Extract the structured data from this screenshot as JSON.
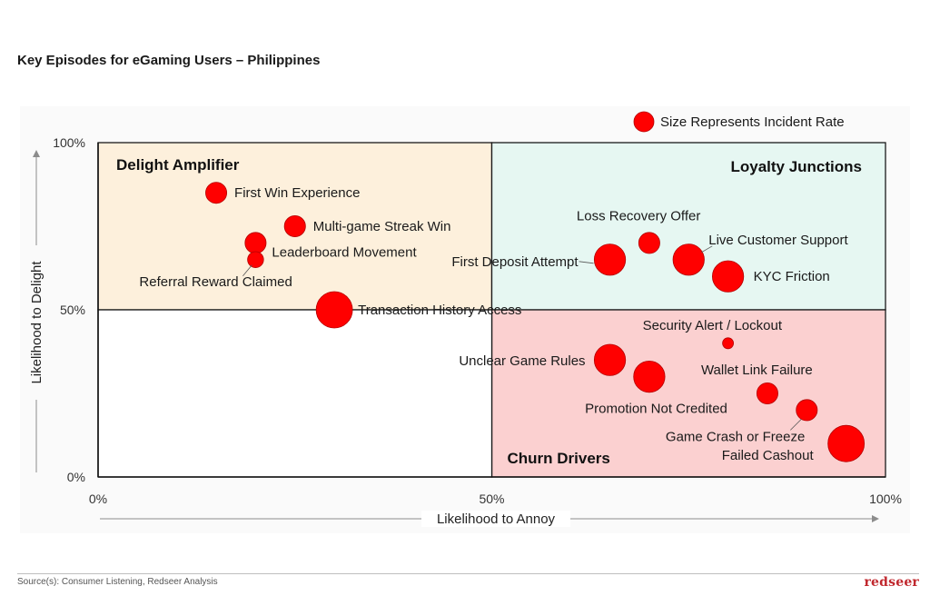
{
  "page": {
    "title": "Key Episodes for eGaming Users – Philippines",
    "source": "Source(s): Consumer Listening, Redseer Analysis",
    "brand": "redseer"
  },
  "chart_data": {
    "type": "scatter",
    "variant": "bubble",
    "title": "",
    "xlabel": "Likelihood to Annoy",
    "ylabel": "Likelihood to Delight",
    "xlim": [
      0,
      100
    ],
    "ylim": [
      0,
      100
    ],
    "xticks": [
      "0%",
      "50%",
      "100%"
    ],
    "yticks": [
      "0%",
      "50%",
      "100%"
    ],
    "grid": false,
    "legend": {
      "label": "Size Represents Incident Rate",
      "position": "top-right"
    },
    "bubble_color": "#ff0000",
    "quadrants": [
      {
        "label": "Delight Amplifier",
        "x_range": [
          0,
          50
        ],
        "y_range": [
          50,
          100
        ],
        "color": "#fdf0dc",
        "label_position": "top-left"
      },
      {
        "label": "Loyalty Junctions",
        "x_range": [
          50,
          100
        ],
        "y_range": [
          50,
          100
        ],
        "color": "#e6f7f2",
        "label_position": "top-right"
      },
      {
        "label": "Churn Drivers",
        "x_range": [
          50,
          100
        ],
        "y_range": [
          0,
          50
        ],
        "color": "#fbd0d0",
        "label_position": "bottom-left"
      },
      {
        "label": "",
        "x_range": [
          0,
          50
        ],
        "y_range": [
          0,
          50
        ],
        "color": "#ffffff",
        "label_position": ""
      }
    ],
    "points": [
      {
        "label": "First Win Experience",
        "x": 15,
        "y": 85,
        "size": 3
      },
      {
        "label": "Multi-game Streak Win",
        "x": 25,
        "y": 75,
        "size": 3
      },
      {
        "label": "Leaderboard Movement",
        "x": 20,
        "y": 70,
        "size": 3
      },
      {
        "label": "Referral Reward Claimed",
        "x": 20,
        "y": 65,
        "size": 2
      },
      {
        "label": "Transaction History Access",
        "x": 30,
        "y": 50,
        "size": 6
      },
      {
        "label": "Loss Recovery Offer",
        "x": 70,
        "y": 70,
        "size": 3
      },
      {
        "label": "Live Customer Support",
        "x": 75,
        "y": 65,
        "size": 5
      },
      {
        "label": "First Deposit Attempt",
        "x": 65,
        "y": 65,
        "size": 5
      },
      {
        "label": "KYC Friction",
        "x": 80,
        "y": 60,
        "size": 5
      },
      {
        "label": "Security Alert / Lockout",
        "x": 80,
        "y": 40,
        "size": 1
      },
      {
        "label": "Unclear Game Rules",
        "x": 65,
        "y": 35,
        "size": 5
      },
      {
        "label": "Wallet Link Failure",
        "x": 85,
        "y": 25,
        "size": 3
      },
      {
        "label": "Promotion Not Credited",
        "x": 70,
        "y": 30,
        "size": 5
      },
      {
        "label": "Game Crash or Freeze",
        "x": 90,
        "y": 20,
        "size": 3
      },
      {
        "label": "Failed Cashout",
        "x": 95,
        "y": 10,
        "size": 6
      }
    ]
  }
}
